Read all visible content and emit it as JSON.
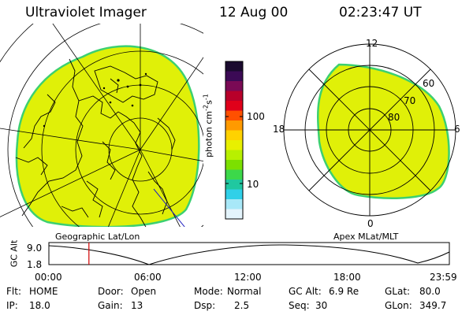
{
  "header": {
    "instrument": "Ultraviolet Imager",
    "date": "12 Aug 00",
    "time": "02:23:47 UT"
  },
  "left_panel": {
    "label": "Geographic Lat/Lon"
  },
  "right_panel": {
    "label": "Apex MLat/MLT",
    "mlt_labels": {
      "top": "12",
      "left": "18",
      "right": "6",
      "bottom": "0"
    },
    "lat_labels": [
      "60",
      "70",
      "80"
    ]
  },
  "colorbar": {
    "unit_text": "photon cm",
    "unit_exp1": "-2",
    "unit_mid": "s",
    "unit_exp2": "-1",
    "ticks": [
      "100",
      "10"
    ],
    "colors": [
      "#1a0a2e",
      "#3b0a55",
      "#7a0a55",
      "#b8002a",
      "#e0001a",
      "#ff5000",
      "#ff9a00",
      "#ffd200",
      "#e8f000",
      "#b8f000",
      "#7ce000",
      "#3cd84a",
      "#20c8a0",
      "#30d0e8",
      "#a8e8f8",
      "#e4f4fc"
    ]
  },
  "colors": {
    "auroral_fill": "#e0f008",
    "auroral_edge": "#3cd070",
    "track": "#000000",
    "marker": "#d00000"
  },
  "altitude_plot": {
    "ylabel": "GC Alt",
    "y_ticks": [
      "9.0",
      "1.8"
    ],
    "x_ticks": [
      "00:00",
      "06:00",
      "12:00",
      "18:00",
      "23:59"
    ],
    "current_time_fraction": 0.1
  },
  "status": {
    "row1": [
      {
        "key": "Flt:",
        "value": "HOME"
      },
      {
        "key": "Door:",
        "value": "Open"
      },
      {
        "key": "Mode:",
        "value": "Normal"
      },
      {
        "key": "GC Alt:",
        "value": "6.9 Re"
      },
      {
        "key": "GLat:",
        "value": "80.0"
      }
    ],
    "row2": [
      {
        "key": "IP:",
        "value": "18.0"
      },
      {
        "key": "Gain:",
        "value": "13"
      },
      {
        "key": "Dsp:",
        "value": "2.5"
      },
      {
        "key": "Seq:",
        "value": "30"
      },
      {
        "key": "GLon:",
        "value": "349.7"
      }
    ]
  }
}
